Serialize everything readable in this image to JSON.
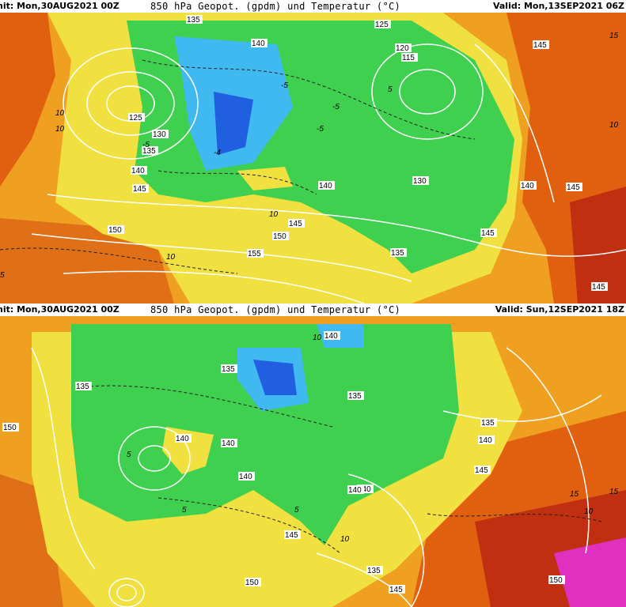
{
  "panels": [
    {
      "init_label": "nit: Mon,30AUG2021 00Z",
      "title": "850 hPa Geopot. (gpdm) und Temperatur (°C)",
      "valid_label": "Valid: Mon,13SEP2021 06Z",
      "geopotential_labels": [
        "135",
        "140",
        "125",
        "120",
        "115",
        "145",
        "125",
        "130",
        "135",
        "140",
        "145",
        "140",
        "130",
        "140",
        "145",
        "145",
        "150",
        "150",
        "155",
        "135",
        "145",
        "145"
      ],
      "temperature_labels": [
        "10",
        "10",
        "-5",
        "-5",
        "-4",
        "5",
        "-5",
        "10",
        "10",
        "5",
        "-5",
        "15",
        "10"
      ]
    },
    {
      "init_label": "nit: Mon,30AUG2021 00Z",
      "title": "850 hPa Geopot. (gpdm) und Temperatur (°C)",
      "valid_label": "Valid: Sun,12SEP2021 18Z",
      "geopotential_labels": [
        "140",
        "135",
        "135",
        "140",
        "150",
        "135",
        "140",
        "140",
        "135",
        "140",
        "145",
        "140",
        "140",
        "145",
        "150",
        "135",
        "145",
        "150"
      ],
      "temperature_labels": [
        "10",
        "5",
        "5",
        "5",
        "10",
        "15",
        "10",
        "15"
      ]
    }
  ],
  "colors": {
    "cold_blue": "#2060e0",
    "cyan": "#40b8f0",
    "green": "#40d050",
    "yellow": "#f0e040",
    "orange": "#f0a020",
    "dark_orange": "#e06010",
    "red": "#c03010",
    "magenta": "#e030c0"
  }
}
